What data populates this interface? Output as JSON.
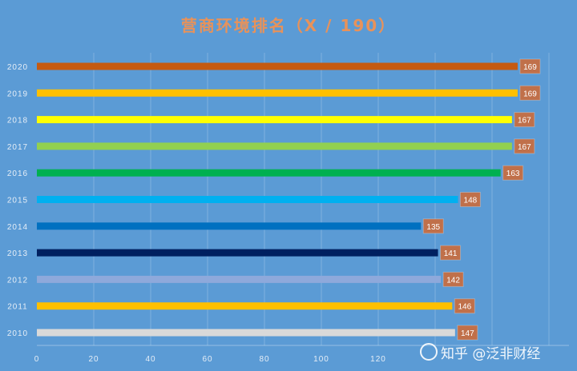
{
  "chart_data": {
    "type": "bar",
    "orientation": "horizontal",
    "title": "营商环境排名（X / 190）",
    "categories": [
      "2020",
      "2019",
      "2018",
      "2017",
      "2016",
      "2015",
      "2014",
      "2013",
      "2012",
      "2011",
      "2010"
    ],
    "values": [
      169,
      169,
      167,
      167,
      163,
      148,
      135,
      141,
      142,
      146,
      147
    ],
    "colors": [
      "#c55a11",
      "#ffc000",
      "#ffff00",
      "#92d050",
      "#00b050",
      "#00b0f0",
      "#0070c0",
      "#002060",
      "#8ea9db",
      "#ffc000",
      "#d9d9d9"
    ],
    "label_bg": "#c0704a",
    "x_ticks": [
      "0",
      "20",
      "40",
      "60",
      "80",
      "100",
      "120"
    ],
    "xlim": [
      0,
      190
    ],
    "grid": true,
    "xlabel": "",
    "ylabel": ""
  },
  "watermark": {
    "text": "知乎 @泛非财经"
  }
}
